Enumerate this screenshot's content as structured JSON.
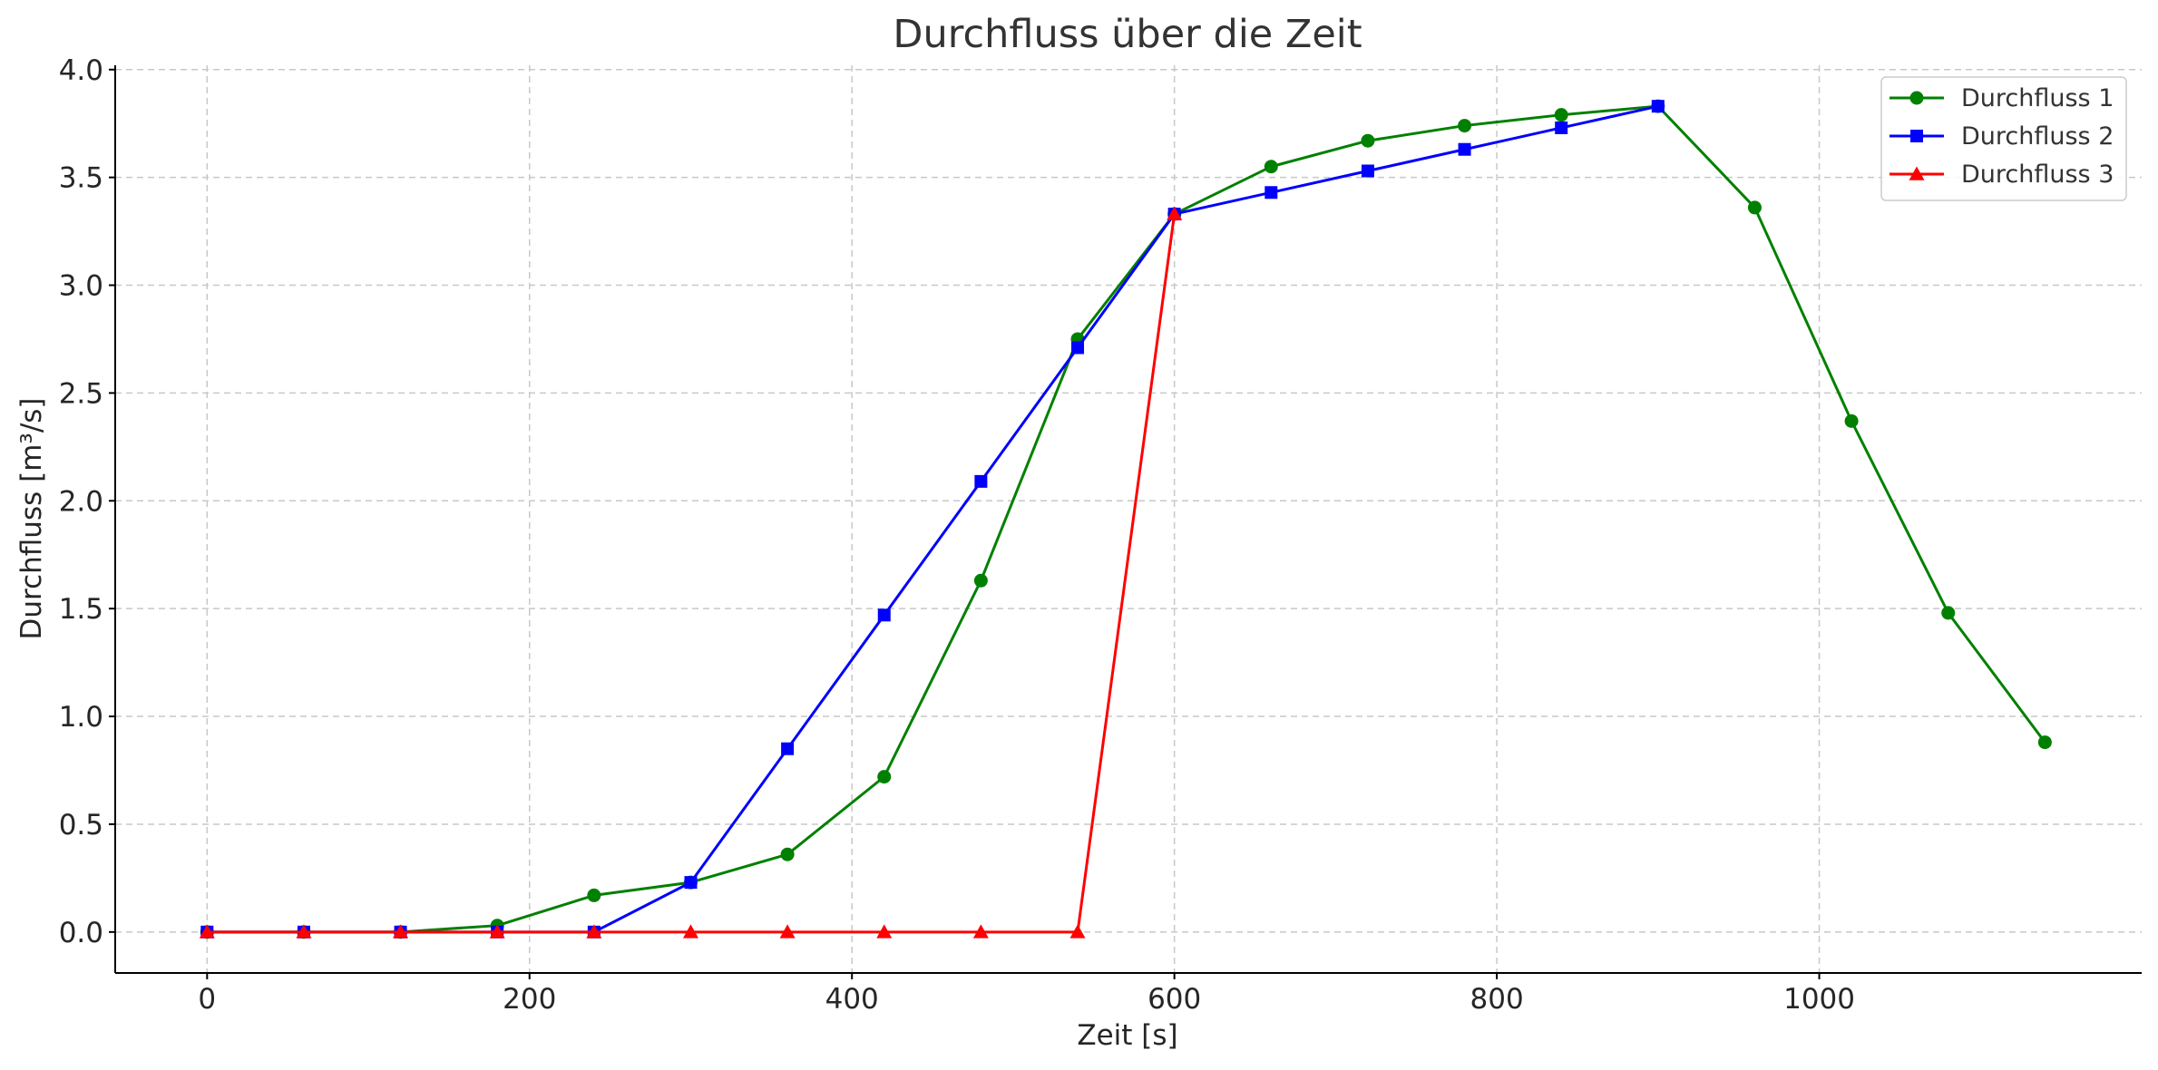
{
  "chart_data": {
    "type": "line",
    "title": "Durchfluss über die Zeit",
    "xlabel": "Zeit [s]",
    "ylabel": "Durchfluss [m³/s]",
    "xlim": [
      -57,
      1200
    ],
    "ylim": [
      -0.19,
      4.02
    ],
    "x_ticks": [
      0,
      200,
      400,
      600,
      800,
      1000
    ],
    "y_ticks": [
      0.0,
      0.5,
      1.0,
      1.5,
      2.0,
      2.5,
      3.0,
      3.5,
      4.0
    ],
    "x_tick_labels": [
      "0",
      "200",
      "400",
      "600",
      "800",
      "1000"
    ],
    "y_tick_labels": [
      "0.0",
      "0.5",
      "1.0",
      "1.5",
      "2.0",
      "2.5",
      "3.0",
      "3.5",
      "4.0"
    ],
    "grid": true,
    "legend_position": "top-right",
    "series": [
      {
        "name": "Durchfluss 1",
        "color": "#008000",
        "marker": "circle",
        "x": [
          0,
          60,
          120,
          180,
          240,
          300,
          360,
          420,
          480,
          540,
          600,
          660,
          720,
          780,
          840,
          900,
          960,
          1020,
          1080,
          1140
        ],
        "values": [
          0.0,
          0.0,
          0.0,
          0.03,
          0.17,
          0.23,
          0.36,
          0.72,
          1.63,
          2.75,
          3.33,
          3.55,
          3.67,
          3.74,
          3.79,
          3.83,
          3.36,
          2.37,
          1.48,
          0.88
        ]
      },
      {
        "name": "Durchfluss 2",
        "color": "#0000ff",
        "marker": "square",
        "x": [
          0,
          60,
          120,
          180,
          240,
          300,
          360,
          420,
          480,
          540,
          600,
          660,
          720,
          780,
          840,
          900
        ],
        "values": [
          0.0,
          0.0,
          0.0,
          0.0,
          0.0,
          0.23,
          0.85,
          1.47,
          2.09,
          2.71,
          3.33,
          3.43,
          3.53,
          3.63,
          3.73,
          3.83
        ]
      },
      {
        "name": "Durchfluss 3",
        "color": "#ff0000",
        "marker": "triangle",
        "x": [
          0,
          60,
          120,
          180,
          240,
          300,
          360,
          420,
          480,
          540,
          600
        ],
        "values": [
          0.0,
          0.0,
          0.0,
          0.0,
          0.0,
          0.0,
          0.0,
          0.0,
          0.0,
          0.0,
          3.33
        ]
      }
    ]
  }
}
